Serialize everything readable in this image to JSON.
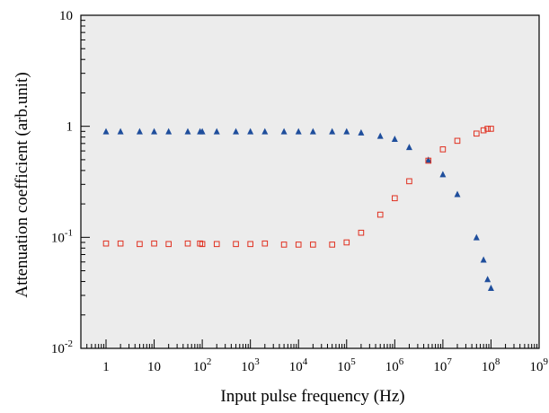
{
  "chart_data": {
    "type": "scatter",
    "title": "",
    "xlabel": "Input pulse frequency (Hz)",
    "ylabel": "Attenuation coefficient (arb.unit)",
    "xscale": "log",
    "yscale": "log",
    "xlim": [
      0.3,
      1000000000
    ],
    "ylim": [
      0.01,
      10
    ],
    "grid": false,
    "legend": "none",
    "background_color": "#ececec",
    "x_ticks": [
      {
        "value": 1,
        "base": "1",
        "exp": ""
      },
      {
        "value": 10,
        "base": "10",
        "exp": ""
      },
      {
        "value": 100,
        "base": "10",
        "exp": "2"
      },
      {
        "value": 1000,
        "base": "10",
        "exp": "3"
      },
      {
        "value": 10000,
        "base": "10",
        "exp": "4"
      },
      {
        "value": 100000,
        "base": "10",
        "exp": "5"
      },
      {
        "value": 1000000,
        "base": "10",
        "exp": "6"
      },
      {
        "value": 10000000,
        "base": "10",
        "exp": "7"
      },
      {
        "value": 100000000,
        "base": "10",
        "exp": "8"
      },
      {
        "value": 1000000000,
        "base": "10",
        "exp": "9"
      }
    ],
    "y_ticks": [
      {
        "value": 0.01,
        "base": "10",
        "exp": "-2"
      },
      {
        "value": 0.1,
        "base": "10",
        "exp": "-1"
      },
      {
        "value": 1,
        "base": "1",
        "exp": ""
      },
      {
        "value": 10,
        "base": "10",
        "exp": ""
      }
    ],
    "series": [
      {
        "marker": "filled-triangle",
        "color": "#1f4e9c",
        "points": [
          [
            1,
            0.9
          ],
          [
            2,
            0.9
          ],
          [
            5,
            0.9
          ],
          [
            10,
            0.9
          ],
          [
            20,
            0.9
          ],
          [
            50,
            0.9
          ],
          [
            90,
            0.9
          ],
          [
            100,
            0.9
          ],
          [
            200,
            0.9
          ],
          [
            500,
            0.9
          ],
          [
            1000,
            0.9
          ],
          [
            2000,
            0.9
          ],
          [
            5000,
            0.9
          ],
          [
            10000,
            0.9
          ],
          [
            20000,
            0.9
          ],
          [
            50000,
            0.9
          ],
          [
            100000,
            0.9
          ],
          [
            200000,
            0.88
          ],
          [
            500000,
            0.82
          ],
          [
            1000000,
            0.77
          ],
          [
            2000000,
            0.65
          ],
          [
            5000000,
            0.5
          ],
          [
            10000000,
            0.37
          ],
          [
            20000000,
            0.245
          ],
          [
            50000000,
            0.1
          ],
          [
            70000000,
            0.063
          ],
          [
            85000000,
            0.042
          ],
          [
            100000000,
            0.035
          ]
        ]
      },
      {
        "marker": "open-square",
        "color": "#e03020",
        "points": [
          [
            1,
            0.088
          ],
          [
            2,
            0.088
          ],
          [
            5,
            0.087
          ],
          [
            10,
            0.088
          ],
          [
            20,
            0.087
          ],
          [
            50,
            0.088
          ],
          [
            90,
            0.088
          ],
          [
            100,
            0.087
          ],
          [
            200,
            0.087
          ],
          [
            500,
            0.087
          ],
          [
            1000,
            0.087
          ],
          [
            2000,
            0.088
          ],
          [
            5000,
            0.086
          ],
          [
            10000,
            0.086
          ],
          [
            20000,
            0.086
          ],
          [
            50000,
            0.086
          ],
          [
            100000,
            0.09
          ],
          [
            200000,
            0.11
          ],
          [
            500000,
            0.16
          ],
          [
            1000000,
            0.225
          ],
          [
            2000000,
            0.32
          ],
          [
            5000000,
            0.49
          ],
          [
            10000000,
            0.62
          ],
          [
            20000000,
            0.74
          ],
          [
            50000000,
            0.86
          ],
          [
            70000000,
            0.92
          ],
          [
            85000000,
            0.95
          ],
          [
            100000000,
            0.95
          ]
        ]
      }
    ]
  }
}
